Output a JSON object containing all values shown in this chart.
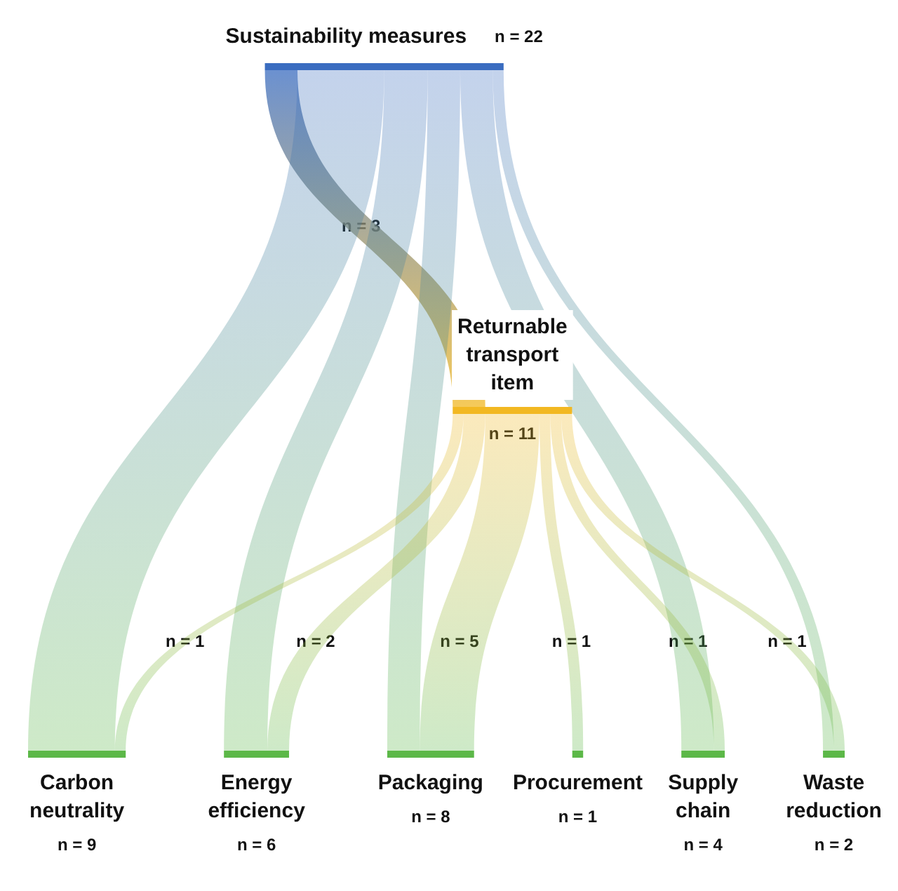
{
  "chart_data": {
    "type": "other",
    "categories": [
      "Sustainability measures",
      "Returnable transport item",
      "Carbon neutrality",
      "Energy efficiency",
      "Packaging",
      "Procurement",
      "Supply chain",
      "Waste reduction"
    ],
    "values": [
      22,
      11,
      9,
      6,
      8,
      1,
      4,
      2
    ],
    "value_labels": [
      "n = 22",
      "n = 11",
      "n = 9",
      "n = 6",
      "n = 8",
      "n = 1",
      "n = 4",
      "n = 2"
    ],
    "colors": [
      "#3a6cc0",
      "#f2b822",
      "#5cb848",
      "#5cb848",
      "#5cb848",
      "#5cb848",
      "#5cb848",
      "#5cb848"
    ],
    "series": [
      {
        "values": [
          null,
          3,
          null,
          null,
          null,
          null,
          null,
          null
        ],
        "value_labels": [
          null,
          "n = 3",
          null,
          null,
          null,
          null,
          null,
          null
        ]
      },
      {
        "values": [
          null,
          null,
          1,
          2,
          5,
          1,
          1,
          1
        ],
        "value_labels": [
          null,
          null,
          "n = 1",
          "n = 2",
          "n = 5",
          "n = 1",
          "n = 1",
          "n = 1"
        ]
      }
    ]
  }
}
